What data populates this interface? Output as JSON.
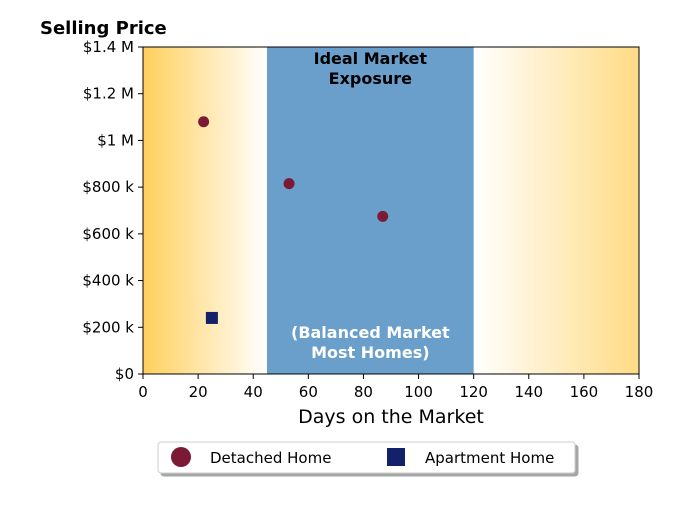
{
  "chart_data": {
    "type": "scatter",
    "ylabel": "Selling Price",
    "xlabel": "Days on the Market",
    "xlim": [
      0,
      180
    ],
    "ylim": [
      0,
      1400000
    ],
    "x_ticks": [
      0,
      20,
      40,
      60,
      80,
      100,
      120,
      140,
      160,
      180
    ],
    "x_tick_labels": [
      "0",
      "20",
      "40",
      "60",
      "80",
      "100",
      "120",
      "140",
      "160",
      "180"
    ],
    "y_ticks": [
      0,
      200000,
      400000,
      600000,
      800000,
      1000000,
      1200000,
      1400000
    ],
    "y_tick_labels": [
      "$0",
      "$200 k",
      "$400 k",
      "$600 k",
      "$800 k",
      "$1 M",
      "$1.2 M",
      "$1.4 M"
    ],
    "grid": false,
    "legend_position": "bottom-center",
    "band": {
      "x_range": [
        45,
        120
      ],
      "color": "#6a9fcc",
      "top_label": [
        "Ideal Market",
        "Exposure"
      ],
      "bottom_label": [
        "(Balanced Market",
        "Most Homes)"
      ],
      "top_label_color": "#000000",
      "bottom_label_color": "#ffffff"
    },
    "gradient_color": "#ffcf5c",
    "series": [
      {
        "name": "Detached Home",
        "marker": "circle",
        "color": "#7b1a34",
        "points": [
          {
            "x": 22,
            "y": 1080000
          },
          {
            "x": 53,
            "y": 815000
          },
          {
            "x": 87,
            "y": 675000
          }
        ]
      },
      {
        "name": "Apartment Home",
        "marker": "square",
        "color": "#13216a",
        "points": [
          {
            "x": 25,
            "y": 240000
          }
        ]
      }
    ]
  }
}
